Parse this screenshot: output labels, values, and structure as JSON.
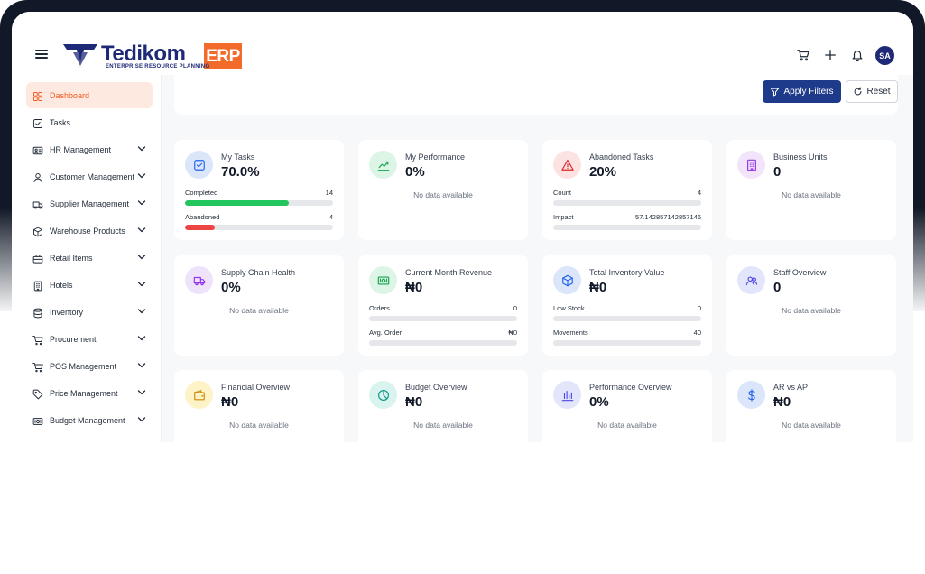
{
  "header": {
    "brand_name": "Tedikom",
    "brand_tag": "ERP",
    "brand_subtitle": "ENTERPRISE RESOURCE PLANNING",
    "avatar_initials": "SA",
    "icons": [
      "menu-icon",
      "cart-icon",
      "plus-icon",
      "bell-icon"
    ]
  },
  "colors": {
    "accent": "#f05a22",
    "primary": "#1e3a8a",
    "success": "#22c55e",
    "danger": "#ef4444"
  },
  "sidebar": {
    "items": [
      {
        "label": "Dashboard",
        "icon": "grid-icon",
        "active": true,
        "expandable": false
      },
      {
        "label": "Tasks",
        "icon": "checkbox-icon",
        "active": false,
        "expandable": false
      },
      {
        "label": "HR Management",
        "icon": "id-card-icon",
        "active": false,
        "expandable": true
      },
      {
        "label": "Customer Management",
        "icon": "user-icon",
        "active": false,
        "expandable": true
      },
      {
        "label": "Supplier Management",
        "icon": "truck-icon",
        "active": false,
        "expandable": true
      },
      {
        "label": "Warehouse Products",
        "icon": "box-icon",
        "active": false,
        "expandable": true
      },
      {
        "label": "Retail Items",
        "icon": "briefcase-icon",
        "active": false,
        "expandable": true
      },
      {
        "label": "Hotels",
        "icon": "building-icon",
        "active": false,
        "expandable": true
      },
      {
        "label": "Inventory",
        "icon": "database-icon",
        "active": false,
        "expandable": true
      },
      {
        "label": "Procurement",
        "icon": "cart-icon",
        "active": false,
        "expandable": true
      },
      {
        "label": "POS Management",
        "icon": "cart-icon",
        "active": false,
        "expandable": true
      },
      {
        "label": "Price Management",
        "icon": "tag-icon",
        "active": false,
        "expandable": true
      },
      {
        "label": "Budget Management",
        "icon": "cash-icon",
        "active": false,
        "expandable": true
      }
    ]
  },
  "filters": {
    "apply_label": "Apply Filters",
    "reset_label": "Reset"
  },
  "cards": [
    {
      "title": "My Tasks",
      "value": "70.0%",
      "icon": "checkbox-icon",
      "icon_bg": "#dbe6fb",
      "icon_color": "#2563eb",
      "metrics": [
        {
          "label": "Completed",
          "value": "14",
          "fraction": 0.7,
          "color": "#22c55e"
        },
        {
          "label": "Abandoned",
          "value": "4",
          "fraction": 0.2,
          "color": "#ef4444"
        }
      ]
    },
    {
      "title": "My Performance",
      "value": "0%",
      "icon": "trend-icon",
      "icon_bg": "#dcf5e6",
      "icon_color": "#16a34a",
      "no_data": "No data available"
    },
    {
      "title": "Abandoned Tasks",
      "value": "20%",
      "icon": "warning-icon",
      "icon_bg": "#fde2e2",
      "icon_color": "#dc2626",
      "metrics": [
        {
          "label": "Count",
          "value": "4",
          "fraction": 0,
          "color": "#9ca3af"
        },
        {
          "label": "Impact",
          "value": "57.142857142857146",
          "fraction": 0,
          "color": "#9ca3af"
        }
      ]
    },
    {
      "title": "Business Units",
      "value": "0",
      "icon": "building-icon",
      "icon_bg": "#f1e4fb",
      "icon_color": "#9333ea",
      "no_data": "No data available"
    },
    {
      "title": "Supply Chain Health",
      "value": "0%",
      "icon": "truck-icon",
      "icon_bg": "#efe3fb",
      "icon_color": "#9333ea",
      "no_data": "No data available"
    },
    {
      "title": "Current Month Revenue",
      "value": "₦0",
      "icon": "cash-icon",
      "icon_bg": "#dcf5e6",
      "icon_color": "#16a34a",
      "metrics": [
        {
          "label": "Orders",
          "value": "0",
          "fraction": 0,
          "color": "#9ca3af"
        },
        {
          "label": "Avg. Order",
          "value": "₦0",
          "fraction": 0,
          "color": "#9ca3af"
        }
      ]
    },
    {
      "title": "Total Inventory Value",
      "value": "₦0",
      "icon": "box-icon",
      "icon_bg": "#dbe6fb",
      "icon_color": "#2563eb",
      "metrics": [
        {
          "label": "Low Stock",
          "value": "0",
          "fraction": 0,
          "color": "#9ca3af"
        },
        {
          "label": "Movements",
          "value": "40",
          "fraction": 0,
          "color": "#9ca3af"
        }
      ]
    },
    {
      "title": "Staff Overview",
      "value": "0",
      "icon": "users-icon",
      "icon_bg": "#e3e6fb",
      "icon_color": "#4f46e5",
      "no_data": "No data available"
    },
    {
      "title": "Financial Overview",
      "value": "₦0",
      "icon": "wallet-icon",
      "icon_bg": "#fdf3c7",
      "icon_color": "#ca8a04",
      "no_data": "No data available"
    },
    {
      "title": "Budget Overview",
      "value": "₦0",
      "icon": "pie-icon",
      "icon_bg": "#d9f3ef",
      "icon_color": "#0d9488",
      "no_data": "No data available"
    },
    {
      "title": "Performance Overview",
      "value": "0%",
      "icon": "bar-chart-icon",
      "icon_bg": "#e3e6fb",
      "icon_color": "#4f46e5",
      "no_data": "No data available"
    },
    {
      "title": "AR vs AP",
      "value": "₦0",
      "icon": "dollar-icon",
      "icon_bg": "#dbe6fb",
      "icon_color": "#2563eb",
      "no_data": "No data available"
    }
  ]
}
